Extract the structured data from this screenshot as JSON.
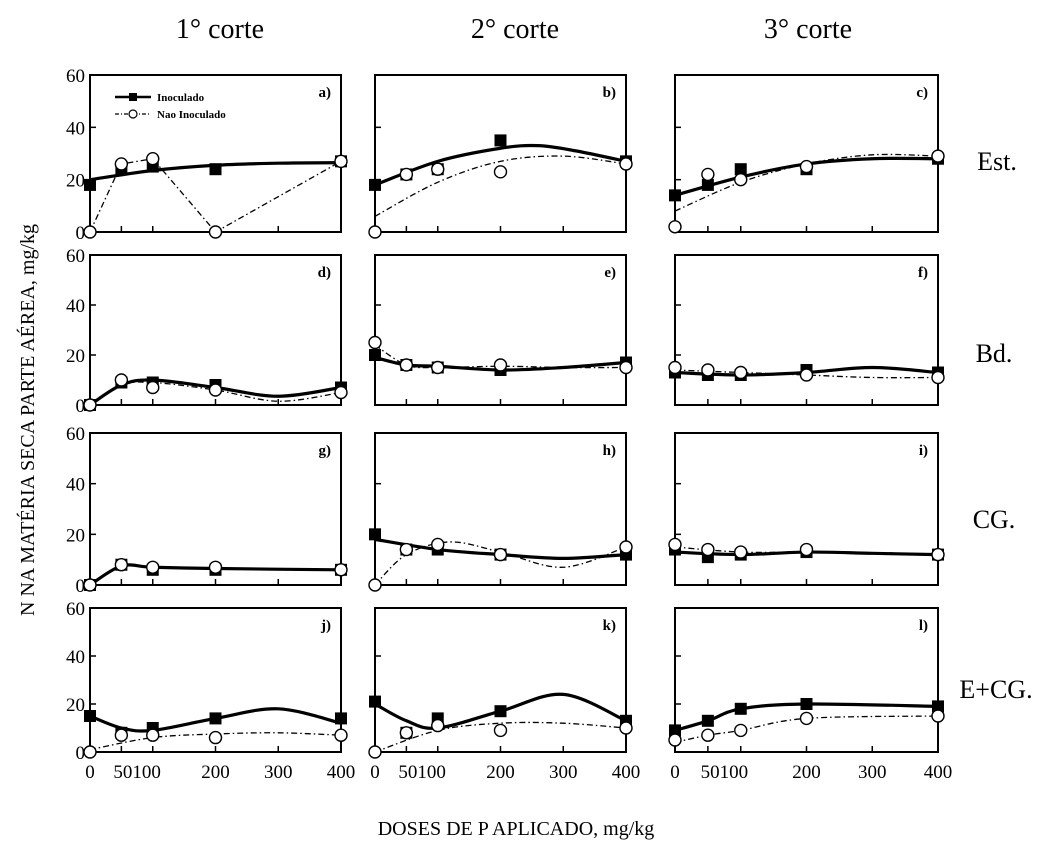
{
  "figure": {
    "column_titles": [
      "1° corte",
      "2° corte",
      "3° corte"
    ],
    "row_labels": [
      "Est.",
      "Bd.",
      "CG.",
      "E+CG."
    ],
    "ylabel": "N NA MATÉRIA SECA PARTE AÉREA, mg/kg",
    "xlabel": "DOSES DE P APLICADO, mg/kg",
    "legend": [
      {
        "name": "Inoculado",
        "marker": "filled-square",
        "line": "solid-thick"
      },
      {
        "name": "Nao Inoculado",
        "marker": "open-circle",
        "line": "dash-dot"
      }
    ],
    "y_ticks": [
      "0",
      "20",
      "40",
      "60"
    ],
    "x_ticks": [
      "0",
      "50",
      "100",
      "200",
      "300",
      "400"
    ],
    "x_tick_labels_shown": [
      "0",
      "50100",
      "200",
      "300",
      "400"
    ]
  },
  "chart_data": [
    {
      "panel": "a)",
      "type": "line",
      "x": [
        0,
        50,
        100,
        200,
        400
      ],
      "ylim": [
        0,
        60
      ],
      "xlim": [
        0,
        400
      ],
      "series": [
        {
          "name": "Inoculado",
          "values": [
            18,
            24,
            25,
            24,
            27
          ],
          "fit": [
            [
              0,
              20
            ],
            [
              100,
              23.5
            ],
            [
              200,
              25.5
            ],
            [
              300,
              26.3
            ],
            [
              400,
              26.5
            ]
          ]
        },
        {
          "name": "Nao Inoculado",
          "values": [
            0,
            26,
            28,
            0,
            27
          ],
          "fit": null
        }
      ]
    },
    {
      "panel": "b)",
      "type": "line",
      "x": [
        0,
        50,
        100,
        200,
        400
      ],
      "ylim": [
        0,
        60
      ],
      "xlim": [
        0,
        400
      ],
      "series": [
        {
          "name": "Inoculado",
          "values": [
            18,
            22,
            24,
            35,
            27
          ],
          "fit": [
            [
              0,
              18
            ],
            [
              100,
              27
            ],
            [
              200,
              32
            ],
            [
              260,
              33
            ],
            [
              320,
              31
            ],
            [
              400,
              27
            ]
          ]
        },
        {
          "name": "Nao Inoculado",
          "values": [
            0,
            22,
            24,
            23,
            26
          ],
          "fit": [
            [
              0,
              6
            ],
            [
              100,
              19
            ],
            [
              200,
              27
            ],
            [
              300,
              29
            ],
            [
              400,
              26
            ]
          ]
        }
      ]
    },
    {
      "panel": "c)",
      "type": "line",
      "x": [
        0,
        50,
        100,
        200,
        400
      ],
      "ylim": [
        0,
        60
      ],
      "xlim": [
        0,
        400
      ],
      "series": [
        {
          "name": "Inoculado",
          "values": [
            14,
            18,
            24,
            24,
            28
          ],
          "fit": [
            [
              0,
              14
            ],
            [
              100,
              21
            ],
            [
              200,
              26
            ],
            [
              300,
              28
            ],
            [
              400,
              28
            ]
          ]
        },
        {
          "name": "Nao Inoculado",
          "values": [
            2,
            22,
            20,
            25,
            29
          ],
          "fit": [
            [
              0,
              8
            ],
            [
              100,
              19
            ],
            [
              200,
              26
            ],
            [
              300,
              29.5
            ],
            [
              400,
              29
            ]
          ]
        }
      ]
    },
    {
      "panel": "d)",
      "type": "line",
      "x": [
        0,
        50,
        100,
        200,
        400
      ],
      "ylim": [
        0,
        60
      ],
      "xlim": [
        0,
        400
      ],
      "series": [
        {
          "name": "Inoculado",
          "values": [
            0,
            9,
            9,
            8,
            7
          ],
          "fit": [
            [
              0,
              0
            ],
            [
              50,
              8
            ],
            [
              100,
              10
            ],
            [
              200,
              7
            ],
            [
              300,
              3.5
            ],
            [
              400,
              7
            ]
          ]
        },
        {
          "name": "Nao Inoculado",
          "values": [
            0,
            10,
            7,
            6,
            5
          ],
          "fit": [
            [
              0,
              0
            ],
            [
              50,
              8
            ],
            [
              100,
              9
            ],
            [
              200,
              6
            ],
            [
              300,
              1.5
            ],
            [
              400,
              5
            ]
          ]
        }
      ]
    },
    {
      "panel": "e)",
      "type": "line",
      "x": [
        0,
        50,
        100,
        200,
        400
      ],
      "ylim": [
        0,
        60
      ],
      "xlim": [
        0,
        400
      ],
      "series": [
        {
          "name": "Inoculado",
          "values": [
            20,
            16,
            15,
            14,
            17
          ],
          "fit": [
            [
              0,
              19
            ],
            [
              50,
              16
            ],
            [
              100,
              15.5
            ],
            [
              200,
              14
            ],
            [
              300,
              15
            ],
            [
              400,
              17
            ]
          ]
        },
        {
          "name": "Nao Inoculado",
          "values": [
            25,
            16,
            15,
            16,
            15
          ],
          "fit": [
            [
              0,
              24
            ],
            [
              50,
              16
            ],
            [
              100,
              15
            ],
            [
              200,
              15.5
            ],
            [
              300,
              15
            ],
            [
              400,
              15
            ]
          ]
        }
      ]
    },
    {
      "panel": "f)",
      "type": "line",
      "x": [
        0,
        50,
        100,
        200,
        400
      ],
      "ylim": [
        0,
        60
      ],
      "xlim": [
        0,
        400
      ],
      "series": [
        {
          "name": "Inoculado",
          "values": [
            13,
            12,
            12,
            14,
            13
          ],
          "fit": [
            [
              0,
              13
            ],
            [
              100,
              12
            ],
            [
              200,
              13
            ],
            [
              300,
              15
            ],
            [
              400,
              13
            ]
          ]
        },
        {
          "name": "Nao Inoculado",
          "values": [
            15,
            14,
            13,
            12,
            11
          ],
          "fit": [
            [
              0,
              14
            ],
            [
              100,
              13
            ],
            [
              200,
              12
            ],
            [
              300,
              11
            ],
            [
              400,
              11
            ]
          ]
        }
      ]
    },
    {
      "panel": "g)",
      "type": "line",
      "x": [
        0,
        50,
        100,
        200,
        400
      ],
      "ylim": [
        0,
        60
      ],
      "xlim": [
        0,
        400
      ],
      "series": [
        {
          "name": "Inoculado",
          "values": [
            0,
            8,
            6,
            6,
            6
          ],
          "fit": [
            [
              0,
              0
            ],
            [
              50,
              7.5
            ],
            [
              100,
              7
            ],
            [
              200,
              6.5
            ],
            [
              400,
              6
            ]
          ]
        },
        {
          "name": "Nao Inoculado",
          "values": [
            0,
            8,
            7,
            7,
            6
          ],
          "fit": [
            [
              0,
              0
            ],
            [
              50,
              7.5
            ],
            [
              100,
              7
            ],
            [
              200,
              6.5
            ],
            [
              400,
              6
            ]
          ]
        }
      ]
    },
    {
      "panel": "h)",
      "type": "line",
      "x": [
        0,
        50,
        100,
        200,
        400
      ],
      "ylim": [
        0,
        60
      ],
      "xlim": [
        0,
        400
      ],
      "series": [
        {
          "name": "Inoculado",
          "values": [
            20,
            14,
            14,
            12,
            12
          ],
          "fit": [
            [
              0,
              18
            ],
            [
              100,
              14
            ],
            [
              200,
              12
            ],
            [
              300,
              10.5
            ],
            [
              400,
              12
            ]
          ]
        },
        {
          "name": "Nao Inoculado",
          "values": [
            0,
            14,
            16,
            12,
            15
          ],
          "fit": [
            [
              0,
              0
            ],
            [
              50,
              12
            ],
            [
              120,
              17
            ],
            [
              200,
              13
            ],
            [
              300,
              7
            ],
            [
              400,
              15
            ]
          ]
        }
      ]
    },
    {
      "panel": "i)",
      "type": "line",
      "x": [
        0,
        50,
        100,
        200,
        400
      ],
      "ylim": [
        0,
        60
      ],
      "xlim": [
        0,
        400
      ],
      "series": [
        {
          "name": "Inoculado",
          "values": [
            14,
            11,
            12,
            13,
            12
          ],
          "fit": [
            [
              0,
              13
            ],
            [
              100,
              12
            ],
            [
              200,
              13
            ],
            [
              300,
              12.5
            ],
            [
              400,
              12
            ]
          ]
        },
        {
          "name": "Nao Inoculado",
          "values": [
            16,
            14,
            13,
            14,
            12
          ],
          "fit": [
            [
              0,
              15
            ],
            [
              100,
              13
            ],
            [
              200,
              13
            ],
            [
              300,
              12.5
            ],
            [
              400,
              12
            ]
          ]
        }
      ]
    },
    {
      "panel": "j)",
      "type": "line",
      "x": [
        0,
        50,
        100,
        200,
        400
      ],
      "ylim": [
        0,
        60
      ],
      "xlim": [
        0,
        400
      ],
      "series": [
        {
          "name": "Inoculado",
          "values": [
            15,
            8,
            10,
            14,
            14
          ],
          "fit": [
            [
              0,
              15
            ],
            [
              50,
              10
            ],
            [
              100,
              9
            ],
            [
              200,
              14
            ],
            [
              300,
              18
            ],
            [
              400,
              12
            ]
          ]
        },
        {
          "name": "Nao Inoculado",
          "values": [
            0,
            7,
            7,
            6,
            7
          ],
          "fit": [
            [
              0,
              1
            ],
            [
              100,
              6
            ],
            [
              200,
              7.5
            ],
            [
              300,
              8
            ],
            [
              400,
              7
            ]
          ]
        }
      ]
    },
    {
      "panel": "k)",
      "type": "line",
      "x": [
        0,
        50,
        100,
        200,
        400
      ],
      "ylim": [
        0,
        60
      ],
      "xlim": [
        0,
        400
      ],
      "series": [
        {
          "name": "Inoculado",
          "values": [
            21,
            8,
            14,
            17,
            13
          ],
          "fit": [
            [
              0,
              20
            ],
            [
              50,
              13
            ],
            [
              100,
              10
            ],
            [
              200,
              17
            ],
            [
              300,
              24
            ],
            [
              400,
              13
            ]
          ]
        },
        {
          "name": "Nao Inoculado",
          "values": [
            0,
            8,
            11,
            9,
            10
          ],
          "fit": [
            [
              0,
              0
            ],
            [
              100,
              9
            ],
            [
              200,
              12
            ],
            [
              300,
              12
            ],
            [
              400,
              10
            ]
          ]
        }
      ]
    },
    {
      "panel": "l)",
      "type": "line",
      "x": [
        0,
        50,
        100,
        200,
        400
      ],
      "ylim": [
        0,
        60
      ],
      "xlim": [
        0,
        400
      ],
      "series": [
        {
          "name": "Inoculado",
          "values": [
            9,
            13,
            18,
            20,
            19
          ],
          "fit": [
            [
              0,
              9
            ],
            [
              50,
              13
            ],
            [
              100,
              18
            ],
            [
              200,
              20
            ],
            [
              400,
              19
            ]
          ]
        },
        {
          "name": "Nao Inoculado",
          "values": [
            5,
            7,
            9,
            14,
            15
          ],
          "fit": [
            [
              0,
              4
            ],
            [
              50,
              7
            ],
            [
              100,
              9
            ],
            [
              200,
              14
            ],
            [
              400,
              15
            ]
          ]
        }
      ]
    }
  ]
}
